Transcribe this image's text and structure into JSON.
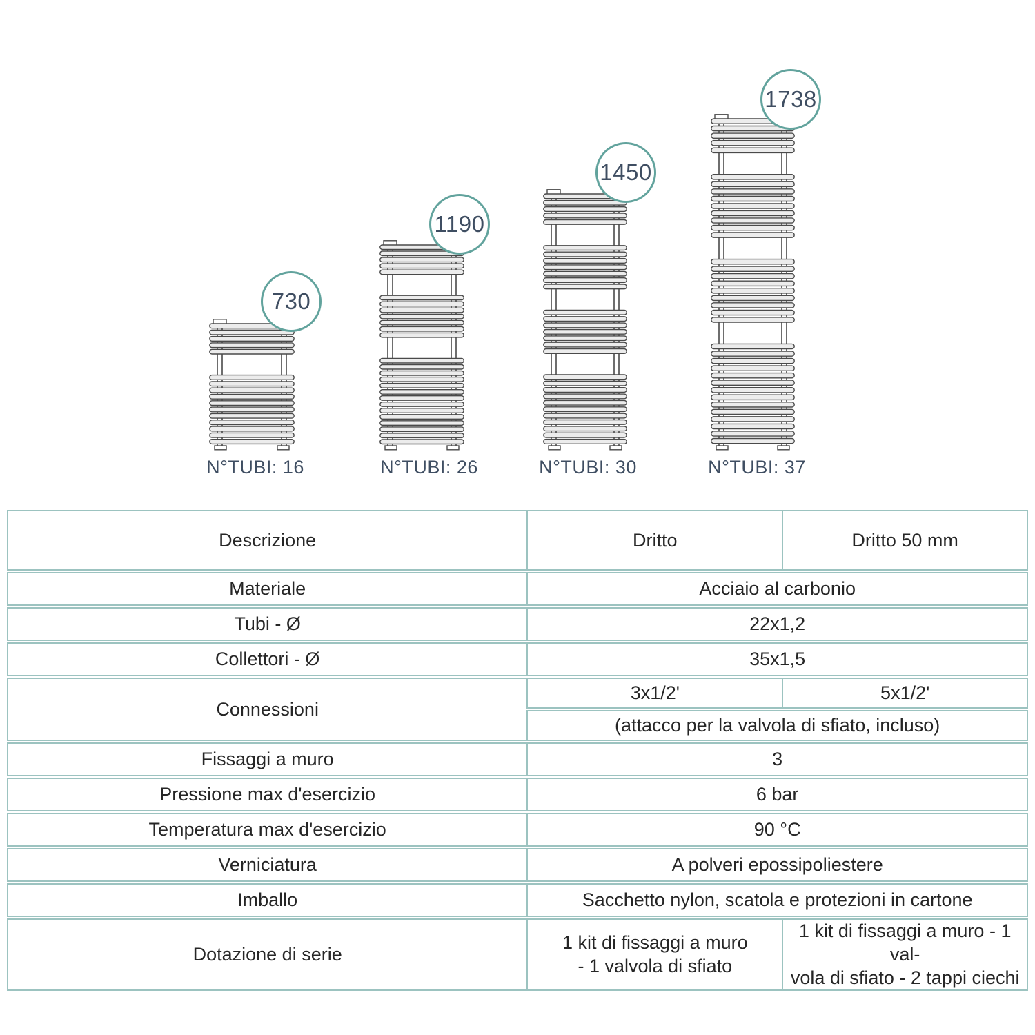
{
  "theme": {
    "table_border": "#9cc3c0",
    "header_text": "#70adb8",
    "badge_stroke": "#62a39d",
    "label_navy": "#3f4e62",
    "row_gray": "#e9ebeb",
    "drawing_line": "#4a4a4a",
    "tube_fill": "#ececec"
  },
  "diagram": {
    "radiators": [
      {
        "height_label": "730",
        "tubi_label": "N°TUBI: 16",
        "groups": [
          5,
          11
        ]
      },
      {
        "height_label": "1190",
        "tubi_label": "N°TUBI: 26",
        "groups": [
          5,
          7,
          14
        ]
      },
      {
        "height_label": "1450",
        "tubi_label": "N°TUBI: 30",
        "groups": [
          5,
          7,
          7,
          11
        ]
      },
      {
        "height_label": "1738",
        "tubi_label": "N°TUBI: 37",
        "groups": [
          5,
          9,
          9,
          14
        ]
      }
    ]
  },
  "table": {
    "headers": [
      "Descrizione",
      "Dritto",
      "Dritto 50 mm"
    ],
    "materiale": {
      "label": "Materiale",
      "value": "Acciaio al carbonio"
    },
    "tubi": {
      "label": "Tubi - Ø",
      "value": "22x1,2"
    },
    "collettori": {
      "label": "Collettori - Ø",
      "value": "35x1,5"
    },
    "connessioni": {
      "label": "Connessioni",
      "dritto": "3x1/2'",
      "dritto50": "5x1/2'",
      "note": "(attacco per la valvola di sfiato, incluso)"
    },
    "fissaggi": {
      "label": "Fissaggi a muro",
      "value": "3"
    },
    "pressione": {
      "label": "Pressione max d'esercizio",
      "value": "6 bar"
    },
    "temperatura": {
      "label": "Temperatura max d'esercizio",
      "value": "90 °C"
    },
    "verniciatura": {
      "label": "Verniciatura",
      "value": "A polveri epossipoliestere"
    },
    "imballo": {
      "label": "Imballo",
      "value": "Sacchetto nylon, scatola e protezioni in cartone"
    },
    "dotazione": {
      "label": "Dotazione di serie",
      "dritto": "1 kit di fissaggi a muro\n- 1 valvola di sfiato",
      "dritto50": "1 kit di fissaggi a muro - 1 val-\nvola di sfiato  - 2 tappi ciechi"
    }
  }
}
